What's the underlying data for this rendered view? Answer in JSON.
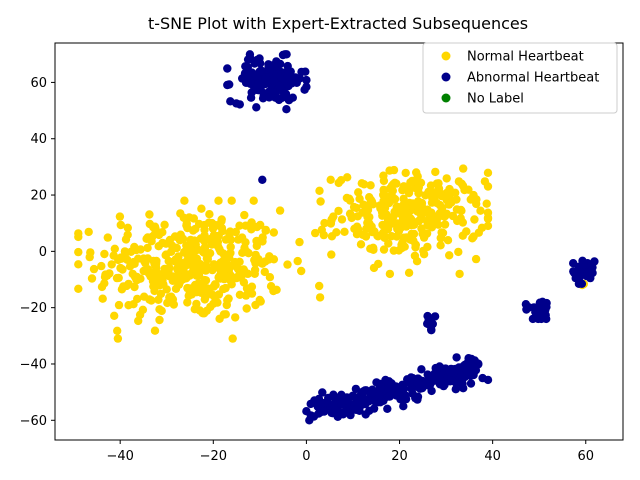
{
  "chart_data": {
    "type": "scatter",
    "title": "t-SNE Plot with Expert-Extracted Subsequences",
    "xlabel": "",
    "ylabel": "",
    "xlim": [
      -54,
      68
    ],
    "ylim": [
      -67,
      74
    ],
    "xticks": [
      -40,
      -20,
      0,
      20,
      40,
      60
    ],
    "yticks": [
      -60,
      -40,
      -20,
      0,
      20,
      40,
      60
    ],
    "xtick_labels": [
      "−40",
      "−20",
      "0",
      "20",
      "40",
      "60"
    ],
    "ytick_labels": [
      "−60",
      "−40",
      "−20",
      "0",
      "20",
      "40",
      "60"
    ],
    "grid": false,
    "legend_position": "top-right",
    "series": [
      {
        "name": "Normal Heartbeat",
        "color": "#ffd700",
        "clusters": [
          {
            "cx": -25,
            "cy": -5,
            "sx": 10,
            "sy": 10,
            "n": 420,
            "xmin": -49,
            "xmax": 3,
            "ymin": -31,
            "ymax": 18
          },
          {
            "cx": 22,
            "cy": 13,
            "sx": 8,
            "sy": 7.5,
            "n": 300,
            "xmin": 0,
            "xmax": 39,
            "ymin": -8,
            "ymax": 30
          },
          {
            "cx": 59.5,
            "cy": -12,
            "sx": 0.3,
            "sy": 0.3,
            "n": 2,
            "xmin": 59,
            "xmax": 60,
            "ymin": -13,
            "ymax": -11
          }
        ]
      },
      {
        "name": "Abnormal Heartbeat",
        "color": "#00008b",
        "clusters": [
          {
            "cx": -8,
            "cy": 61,
            "sx": 4,
            "sy": 4,
            "n": 130,
            "xmin": -17,
            "xmax": 0,
            "ymin": 50,
            "ymax": 70
          },
          {
            "cx": -9.5,
            "cy": 25.5,
            "sx": 0.1,
            "sy": 0.1,
            "n": 1,
            "xmin": -9.6,
            "xmax": -9.4,
            "ymin": 25.4,
            "ymax": 25.6
          },
          {
            "cx": 18,
            "cy": -49,
            "sx": 11,
            "sy": 5,
            "n": 260,
            "band": true,
            "x0": 2,
            "y0": -57,
            "x1": 38,
            "y1": -41,
            "xmin": 0,
            "xmax": 39,
            "ymin": -60,
            "ymax": -37
          },
          {
            "cx": 26.5,
            "cy": -25.5,
            "sx": 0.8,
            "sy": 1.2,
            "n": 10,
            "xmin": 25,
            "xmax": 28,
            "ymin": -28,
            "ymax": -23
          },
          {
            "cx": 50,
            "cy": -20.5,
            "sx": 1.6,
            "sy": 2.2,
            "n": 28,
            "xmin": 47,
            "xmax": 53,
            "ymin": -24,
            "ymax": -15
          },
          {
            "cx": 59.5,
            "cy": -7,
            "sx": 1.2,
            "sy": 2.2,
            "n": 26,
            "xmin": 56,
            "xmax": 62,
            "ymin": -12,
            "ymax": -3
          }
        ]
      },
      {
        "name": "No Label",
        "color": "#008000",
        "clusters": []
      }
    ]
  }
}
